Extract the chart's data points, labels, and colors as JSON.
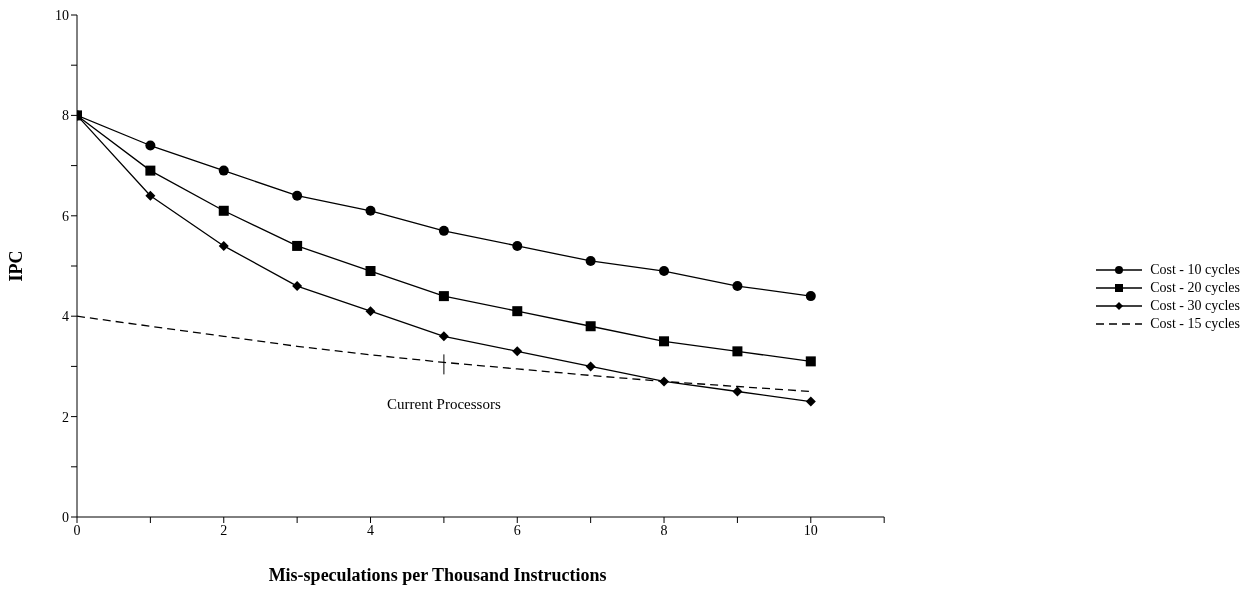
{
  "chart_data": {
    "type": "line",
    "xlabel": "Mis-speculations per Thousand Instructions",
    "ylabel": "IPC",
    "x": [
      0,
      1,
      2,
      3,
      4,
      5,
      6,
      7,
      8,
      9,
      10
    ],
    "series": [
      {
        "name": "Cost - 10 cycles",
        "color": "#000000",
        "marker": "circle",
        "values": [
          8,
          7.4,
          6.9,
          6.4,
          6.1,
          5.7,
          5.4,
          5.1,
          4.9,
          4.6,
          4.4
        ]
      },
      {
        "name": "Cost - 20 cycles",
        "color": "#000000",
        "marker": "square",
        "values": [
          8,
          6.9,
          6.1,
          5.4,
          4.9,
          4.4,
          4.1,
          3.8,
          3.5,
          3.3,
          3.1
        ]
      },
      {
        "name": "Cost - 30 cycles",
        "color": "#000000",
        "marker": "diamond",
        "values": [
          8,
          6.4,
          5.4,
          4.6,
          4.1,
          3.6,
          3.3,
          3.0,
          2.7,
          2.5,
          2.3
        ]
      },
      {
        "name": "Cost - 15 cycles",
        "color": "#000000",
        "marker": "none",
        "line_style": "dashed",
        "values": [
          4.0,
          3.8,
          3.6,
          3.4,
          3.23,
          3.08,
          2.95,
          2.82,
          2.7,
          2.6,
          2.5
        ]
      }
    ],
    "annotations": [
      {
        "text": "Current Processors",
        "x": 5,
        "y": 3.08
      }
    ],
    "xlim": [
      0,
      11
    ],
    "xticks": [
      0,
      {
        "value": 1,
        "label": null
      },
      2,
      {
        "value": 3,
        "label": null
      },
      4,
      {
        "value": 5,
        "label": null
      },
      6,
      {
        "value": 7,
        "label": null
      },
      8,
      {
        "value": 9,
        "label": null
      },
      10,
      {
        "value": 11,
        "label": null
      }
    ],
    "ylim": [
      0,
      10
    ],
    "yticks": [
      0,
      {
        "value": 1,
        "label": null
      },
      2,
      {
        "value": 3,
        "label": null
      },
      4,
      {
        "value": 5,
        "label": null
      },
      6,
      {
        "value": 7,
        "label": null
      },
      8,
      {
        "value": 9,
        "label": null
      },
      10
    ],
    "grid": false,
    "legend": "right"
  }
}
